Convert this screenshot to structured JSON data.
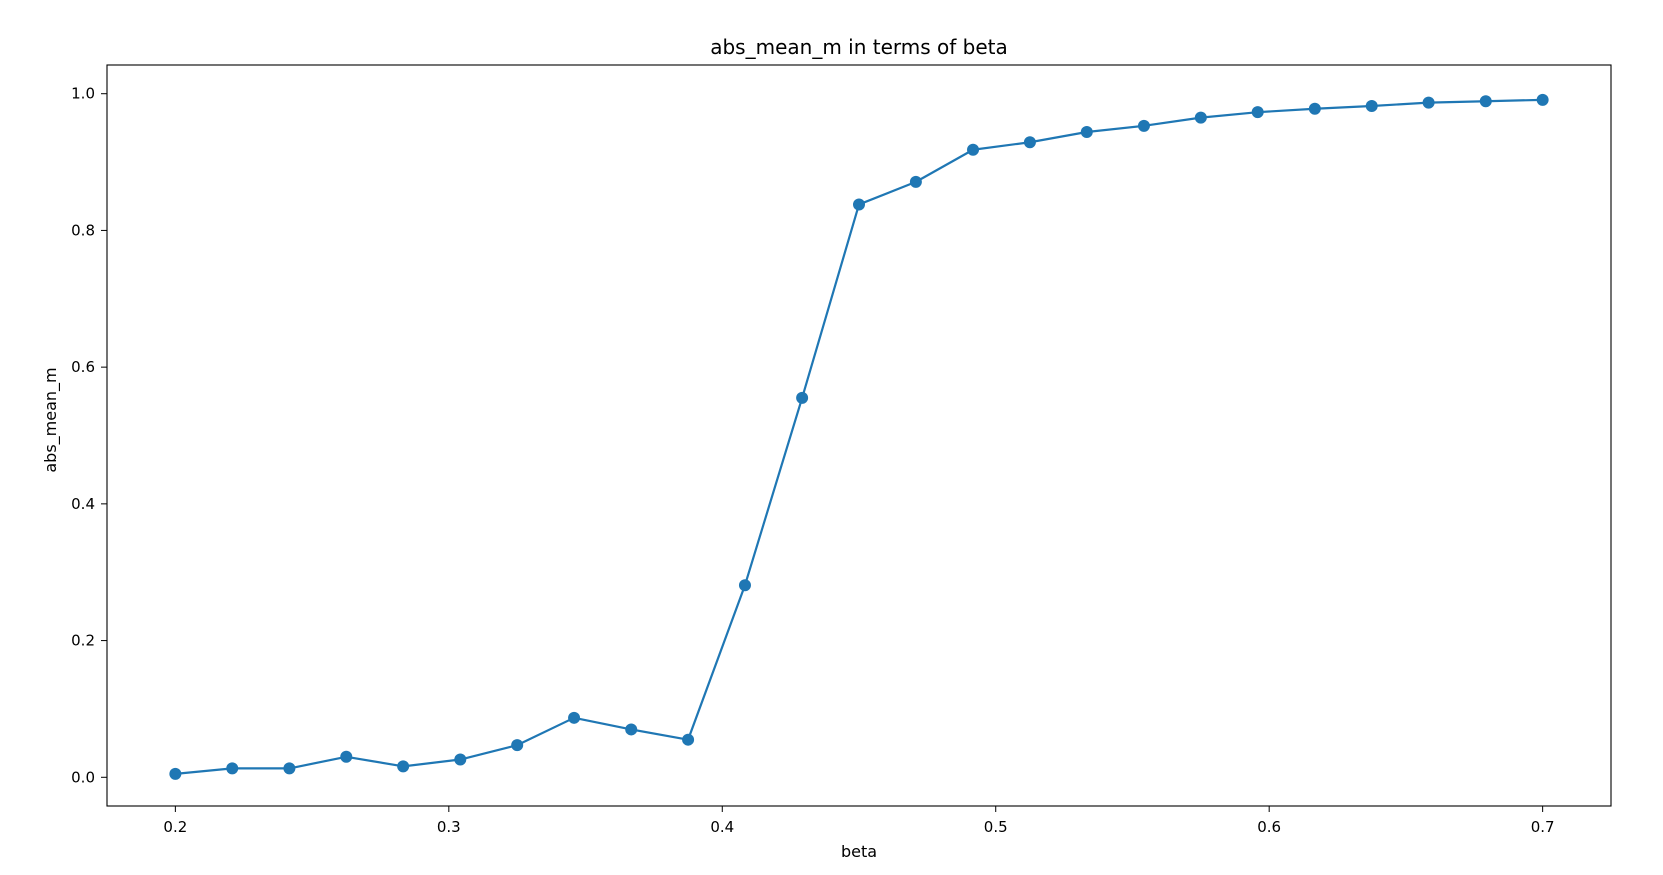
{
  "chart_data": {
    "type": "line",
    "title": "abs_mean_m in terms of beta",
    "xlabel": "beta",
    "ylabel": "abs_mean_m",
    "xlim": [
      0.175,
      0.725
    ],
    "ylim": [
      -0.042,
      1.042
    ],
    "xticks": [
      0.2,
      0.3,
      0.4,
      0.5,
      0.6,
      0.7
    ],
    "xtick_labels": [
      "0.2",
      "0.3",
      "0.4",
      "0.5",
      "0.6",
      "0.7"
    ],
    "yticks": [
      0.0,
      0.2,
      0.4,
      0.6,
      0.8,
      1.0
    ],
    "ytick_labels": [
      "0.0",
      "0.2",
      "0.4",
      "0.6",
      "0.8",
      "1.0"
    ],
    "grid": false,
    "legend": "none",
    "color": "#1f77b4",
    "marker": "circle",
    "series": [
      {
        "x": [
          0.2,
          0.2208,
          0.2417,
          0.2625,
          0.2833,
          0.3042,
          0.325,
          0.3458,
          0.3667,
          0.3875,
          0.4083,
          0.4292,
          0.45,
          0.4708,
          0.4917,
          0.5125,
          0.5333,
          0.5542,
          0.575,
          0.5958,
          0.6167,
          0.6375,
          0.6583,
          0.6792,
          0.7
        ],
        "values": [
          0.005,
          0.013,
          0.013,
          0.03,
          0.016,
          0.026,
          0.047,
          0.087,
          0.07,
          0.055,
          0.281,
          0.555,
          0.838,
          0.871,
          0.918,
          0.929,
          0.944,
          0.953,
          0.965,
          0.973,
          0.978,
          0.982,
          0.987,
          0.989,
          0.991
        ]
      }
    ]
  }
}
